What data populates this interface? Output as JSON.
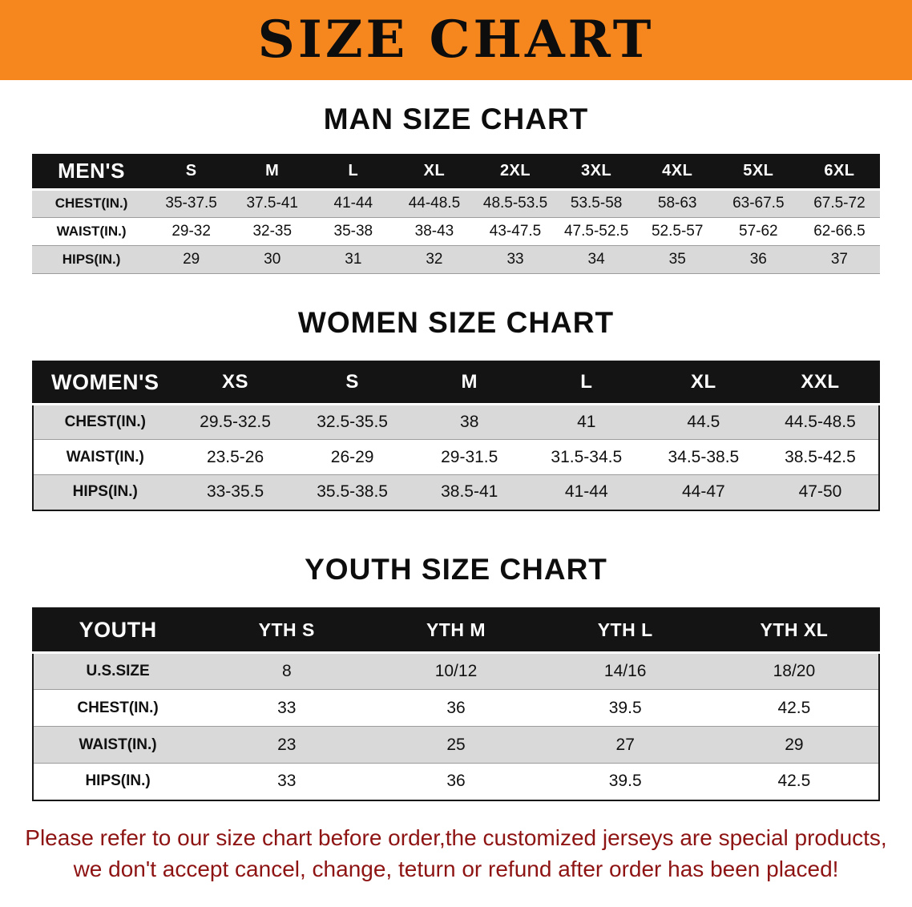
{
  "colors": {
    "accent_orange": "#f6861e",
    "header_black": "#141414",
    "row_gray": "#d9d9d9",
    "note_red": "#8e1414"
  },
  "banner": {
    "title": "SIZE CHART"
  },
  "sections": [
    {
      "heading": "MAN SIZE CHART",
      "table": {
        "label": "MEN'S",
        "columns": [
          "S",
          "M",
          "L",
          "XL",
          "2XL",
          "3XL",
          "4XL",
          "5XL",
          "6XL"
        ],
        "rows": [
          {
            "label": "CHEST(IN.)",
            "values": [
              "35-37.5",
              "37.5-41",
              "41-44",
              "44-48.5",
              "48.5-53.5",
              "53.5-58",
              "58-63",
              "63-67.5",
              "67.5-72"
            ]
          },
          {
            "label": "WAIST(IN.)",
            "values": [
              "29-32",
              "32-35",
              "35-38",
              "38-43",
              "43-47.5",
              "47.5-52.5",
              "52.5-57",
              "57-62",
              "62-66.5"
            ]
          },
          {
            "label": "HIPS(IN.)",
            "values": [
              "29",
              "30",
              "31",
              "32",
              "33",
              "34",
              "35",
              "36",
              "37"
            ]
          }
        ]
      }
    },
    {
      "heading": "WOMEN SIZE CHART",
      "table": {
        "label": "WOMEN'S",
        "columns": [
          "XS",
          "S",
          "M",
          "L",
          "XL",
          "XXL"
        ],
        "rows": [
          {
            "label": "CHEST(IN.)",
            "values": [
              "29.5-32.5",
              "32.5-35.5",
              "38",
              "41",
              "44.5",
              "44.5-48.5"
            ]
          },
          {
            "label": "WAIST(IN.)",
            "values": [
              "23.5-26",
              "26-29",
              "29-31.5",
              "31.5-34.5",
              "34.5-38.5",
              "38.5-42.5"
            ]
          },
          {
            "label": "HIPS(IN.)",
            "values": [
              "33-35.5",
              "35.5-38.5",
              "38.5-41",
              "41-44",
              "44-47",
              "47-50"
            ]
          }
        ]
      }
    },
    {
      "heading": "YOUTH SIZE CHART",
      "table": {
        "label": "YOUTH",
        "columns": [
          "YTH S",
          "YTH M",
          "YTH L",
          "YTH XL"
        ],
        "rows": [
          {
            "label": "U.S.SIZE",
            "values": [
              "8",
              "10/12",
              "14/16",
              "18/20"
            ]
          },
          {
            "label": "CHEST(IN.)",
            "values": [
              "33",
              "36",
              "39.5",
              "42.5"
            ]
          },
          {
            "label": "WAIST(IN.)",
            "values": [
              "23",
              "25",
              "27",
              "29"
            ]
          },
          {
            "label": "HIPS(IN.)",
            "values": [
              "33",
              "36",
              "39.5",
              "42.5"
            ]
          }
        ]
      }
    }
  ],
  "footer": {
    "line1": "Please refer to our size chart before order,the customized jerseys are special products,",
    "line2": "we don't accept cancel, change, teturn or refund after order has been placed!"
  }
}
